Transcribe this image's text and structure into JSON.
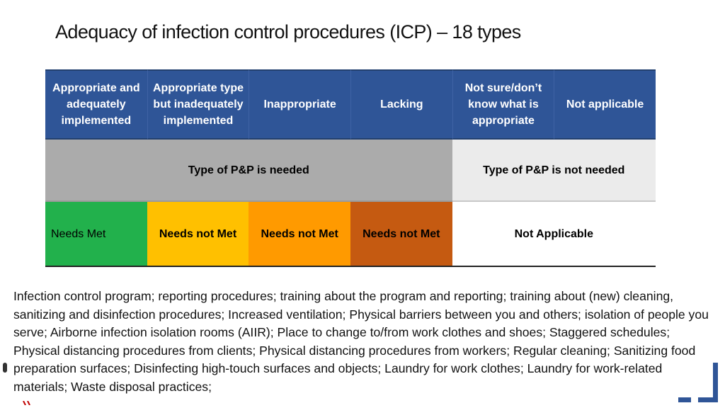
{
  "title": "Adequacy of infection control procedures (ICP) – 18 types",
  "columns": [
    "Appropriate and adequately implemented",
    "Appropriate type but inadequately implemented",
    "Inappropriate",
    "Lacking",
    "Not sure/don’t know what is appropriate",
    "Not applicable"
  ],
  "need_row": {
    "needed": "Type of P&P is needed",
    "not_needed": "Type of P&P is not needed"
  },
  "status_row": {
    "met": "Needs Met",
    "not_met_1": "Needs not Met",
    "not_met_2": "Needs not Met",
    "not_met_3": "Needs not Met",
    "not_applicable": "Not Applicable"
  },
  "paragraph": "Infection control program; reporting procedures; training about the program and reporting; training about (new) cleaning, sanitizing and disinfection procedures; Increased ventilation; Physical barriers between you and others; isolation of people you serve; Airborne infection isolation rooms (AIIR); Place to change to/from work clothes and shoes; Staggered schedules; Physical distancing procedures from clients; Physical distancing procedures from workers; Regular cleaning; Sanitizing food preparation surfaces; Disinfecting high-touch surfaces and objects; Laundry for work clothes; Laundry for work-related materials; Waste disposal practices;",
  "colors": {
    "header": "#2f5597",
    "needed": "#ababab",
    "not_needed": "#ebebeb",
    "met": "#22b14c",
    "not_met_yellow": "#ffc000",
    "not_met_orange": "#ff9a00",
    "not_met_brown": "#c55a11",
    "corner_mark": "#2f5597"
  }
}
